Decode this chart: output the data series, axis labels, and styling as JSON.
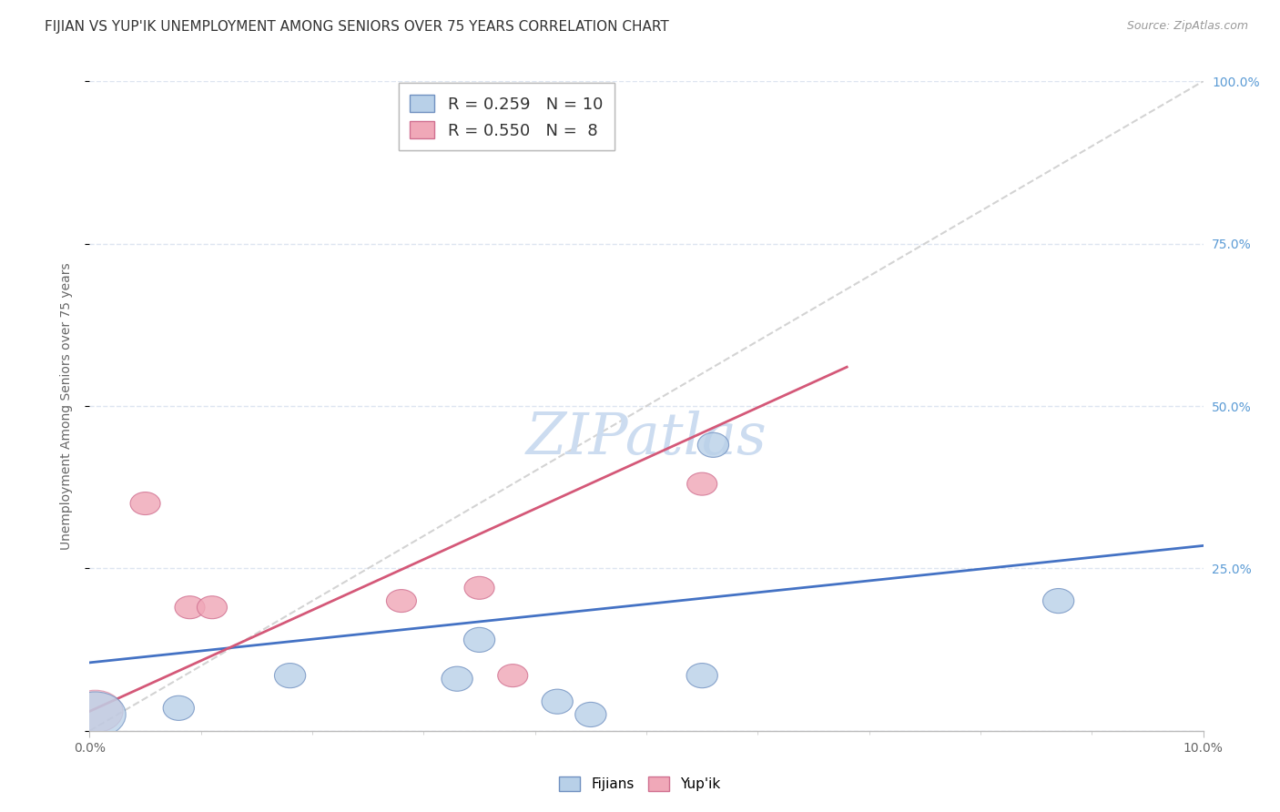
{
  "title": "FIJIAN VS YUP'IK UNEMPLOYMENT AMONG SENIORS OVER 75 YEARS CORRELATION CHART",
  "source": "Source: ZipAtlas.com",
  "ylabel": "Unemployment Among Seniors over 75 years",
  "xlim": [
    0.0,
    10.0
  ],
  "ylim": [
    0.0,
    100.0
  ],
  "fijian_color": "#b8d0e8",
  "yupik_color": "#f0a8b8",
  "fijian_edge_color": "#7090c0",
  "yupik_edge_color": "#d07090",
  "fijian_line_color": "#4472c4",
  "yupik_line_color": "#d45878",
  "ref_line_color": "#cccccc",
  "right_tick_color": "#5b9bd5",
  "grid_color": "#dde5f0",
  "fijian_R": 0.259,
  "fijian_N": 10,
  "yupik_R": 0.55,
  "yupik_N": 8,
  "fijian_scatter": [
    [
      0.05,
      2.5
    ],
    [
      0.8,
      3.5
    ],
    [
      1.8,
      8.5
    ],
    [
      3.3,
      8.0
    ],
    [
      3.5,
      14.0
    ],
    [
      4.2,
      4.5
    ],
    [
      4.5,
      2.5
    ],
    [
      5.5,
      8.5
    ],
    [
      5.6,
      44.0
    ],
    [
      8.7,
      20.0
    ]
  ],
  "yupik_scatter": [
    [
      0.05,
      3.0
    ],
    [
      0.5,
      35.0
    ],
    [
      0.9,
      19.0
    ],
    [
      1.1,
      19.0
    ],
    [
      2.8,
      20.0
    ],
    [
      3.5,
      22.0
    ],
    [
      3.8,
      8.5
    ],
    [
      5.5,
      38.0
    ]
  ],
  "fijian_large_idx": 0,
  "yupik_large_idx": 0,
  "fijian_line_x": [
    0.0,
    10.0
  ],
  "fijian_line_y": [
    10.5,
    28.5
  ],
  "yupik_line_x": [
    0.0,
    6.8
  ],
  "yupik_line_y": [
    3.0,
    56.0
  ],
  "ref_line_x": [
    0.0,
    10.0
  ],
  "ref_line_y": [
    0.0,
    100.0
  ],
  "watermark": "ZIPatlas",
  "background_color": "#ffffff",
  "title_fontsize": 11,
  "label_fontsize": 10,
  "tick_fontsize": 10
}
